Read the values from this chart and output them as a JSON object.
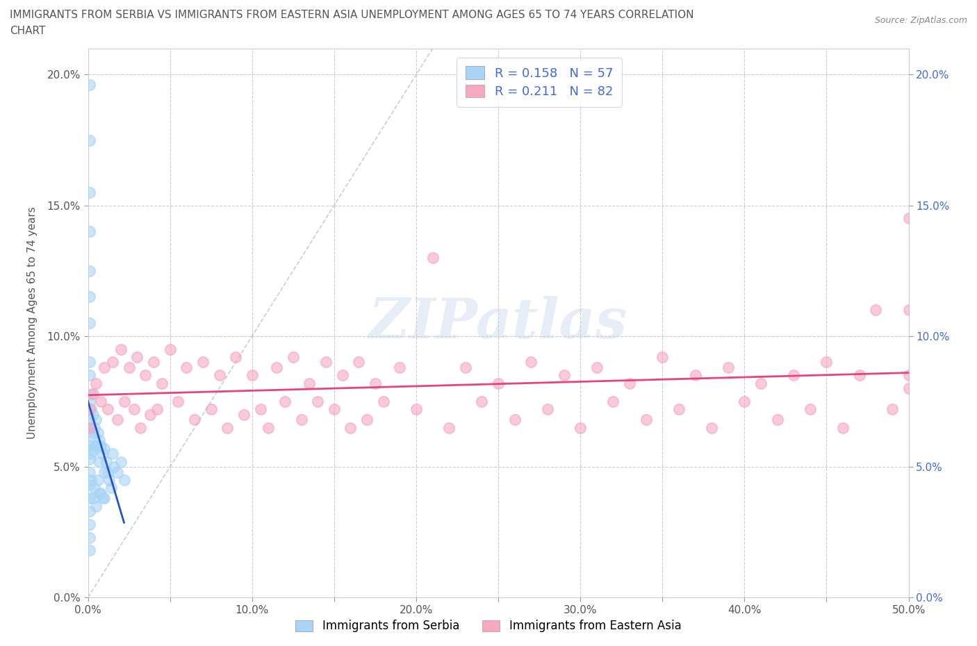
{
  "title_line1": "IMMIGRANTS FROM SERBIA VS IMMIGRANTS FROM EASTERN ASIA UNEMPLOYMENT AMONG AGES 65 TO 74 YEARS CORRELATION",
  "title_line2": "CHART",
  "source": "Source: ZipAtlas.com",
  "ylabel": "Unemployment Among Ages 65 to 74 years",
  "xlim": [
    0.0,
    0.5
  ],
  "ylim": [
    0.0,
    0.21
  ],
  "xticks": [
    0.0,
    0.05,
    0.1,
    0.15,
    0.2,
    0.25,
    0.3,
    0.35,
    0.4,
    0.45,
    0.5
  ],
  "yticks": [
    0.0,
    0.05,
    0.1,
    0.15,
    0.2
  ],
  "ytick_labels": [
    "0.0%",
    "5.0%",
    "10.0%",
    "15.0%",
    "20.0%"
  ],
  "xtick_labels": [
    "0.0%",
    "",
    "10.0%",
    "",
    "20.0%",
    "",
    "30.0%",
    "",
    "40.0%",
    "",
    "50.0%"
  ],
  "color_serbia": "#a8d4f5",
  "color_east_asia": "#f5a8c0",
  "trendline_color_serbia": "#2255cc",
  "trendline_color_east_asia": "#e8447a",
  "r_serbia": 0.158,
  "n_serbia": 57,
  "r_east_asia": 0.211,
  "n_east_asia": 82,
  "legend_r_color": "#4169E1",
  "legend_n_color": "#cc3366",
  "serbia_x": [
    0.001,
    0.001,
    0.001,
    0.001,
    0.001,
    0.001,
    0.001,
    0.001,
    0.001,
    0.001,
    0.001,
    0.001,
    0.001,
    0.001,
    0.001,
    0.001,
    0.001,
    0.001,
    0.001,
    0.001,
    0.001,
    0.002,
    0.002,
    0.002,
    0.002,
    0.002,
    0.003,
    0.003,
    0.003,
    0.003,
    0.004,
    0.004,
    0.004,
    0.005,
    0.005,
    0.005,
    0.006,
    0.006,
    0.007,
    0.007,
    0.007,
    0.008,
    0.008,
    0.009,
    0.009,
    0.01,
    0.01,
    0.01,
    0.011,
    0.012,
    0.013,
    0.014,
    0.015,
    0.016,
    0.018,
    0.02,
    0.022
  ],
  "serbia_y": [
    0.196,
    0.175,
    0.155,
    0.14,
    0.125,
    0.115,
    0.105,
    0.09,
    0.085,
    0.075,
    0.068,
    0.062,
    0.058,
    0.053,
    0.048,
    0.043,
    0.038,
    0.033,
    0.028,
    0.023,
    0.018,
    0.078,
    0.072,
    0.065,
    0.055,
    0.045,
    0.07,
    0.063,
    0.056,
    0.038,
    0.065,
    0.058,
    0.042,
    0.068,
    0.058,
    0.035,
    0.063,
    0.045,
    0.06,
    0.052,
    0.04,
    0.058,
    0.04,
    0.055,
    0.038,
    0.057,
    0.048,
    0.038,
    0.052,
    0.048,
    0.045,
    0.042,
    0.055,
    0.05,
    0.048,
    0.052,
    0.045
  ],
  "east_asia_x": [
    0.001,
    0.001,
    0.003,
    0.005,
    0.008,
    0.01,
    0.012,
    0.015,
    0.018,
    0.02,
    0.022,
    0.025,
    0.028,
    0.03,
    0.032,
    0.035,
    0.038,
    0.04,
    0.042,
    0.045,
    0.05,
    0.055,
    0.06,
    0.065,
    0.07,
    0.075,
    0.08,
    0.085,
    0.09,
    0.095,
    0.1,
    0.105,
    0.11,
    0.115,
    0.12,
    0.125,
    0.13,
    0.135,
    0.14,
    0.145,
    0.15,
    0.155,
    0.16,
    0.165,
    0.17,
    0.175,
    0.18,
    0.19,
    0.2,
    0.21,
    0.22,
    0.23,
    0.24,
    0.25,
    0.26,
    0.27,
    0.28,
    0.29,
    0.3,
    0.31,
    0.32,
    0.33,
    0.34,
    0.35,
    0.36,
    0.37,
    0.38,
    0.39,
    0.4,
    0.41,
    0.42,
    0.43,
    0.44,
    0.45,
    0.46,
    0.47,
    0.48,
    0.49,
    0.5,
    0.5,
    0.5,
    0.5
  ],
  "east_asia_y": [
    0.072,
    0.065,
    0.078,
    0.082,
    0.075,
    0.088,
    0.072,
    0.09,
    0.068,
    0.095,
    0.075,
    0.088,
    0.072,
    0.092,
    0.065,
    0.085,
    0.07,
    0.09,
    0.072,
    0.082,
    0.095,
    0.075,
    0.088,
    0.068,
    0.09,
    0.072,
    0.085,
    0.065,
    0.092,
    0.07,
    0.085,
    0.072,
    0.065,
    0.088,
    0.075,
    0.092,
    0.068,
    0.082,
    0.075,
    0.09,
    0.072,
    0.085,
    0.065,
    0.09,
    0.068,
    0.082,
    0.075,
    0.088,
    0.072,
    0.13,
    0.065,
    0.088,
    0.075,
    0.082,
    0.068,
    0.09,
    0.072,
    0.085,
    0.065,
    0.088,
    0.075,
    0.082,
    0.068,
    0.092,
    0.072,
    0.085,
    0.065,
    0.088,
    0.075,
    0.082,
    0.068,
    0.085,
    0.072,
    0.09,
    0.065,
    0.085,
    0.11,
    0.072,
    0.085,
    0.145,
    0.11,
    0.08
  ]
}
